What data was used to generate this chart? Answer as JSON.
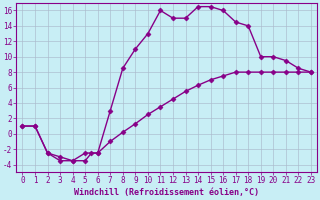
{
  "title": "",
  "xlabel": "Windchill (Refroidissement éolien,°C)",
  "ylabel": "",
  "bg_color": "#c8eef5",
  "line_color": "#880088",
  "grid_color": "#aabbcc",
  "xlim": [
    -0.5,
    23.5
  ],
  "ylim": [
    -5,
    17
  ],
  "xticks": [
    0,
    1,
    2,
    3,
    4,
    5,
    6,
    7,
    8,
    9,
    10,
    11,
    12,
    13,
    14,
    15,
    16,
    17,
    18,
    19,
    20,
    21,
    22,
    23
  ],
  "yticks": [
    -4,
    -2,
    0,
    2,
    4,
    6,
    8,
    10,
    12,
    14,
    16
  ],
  "line1_x": [
    0,
    1,
    2,
    3,
    4,
    5,
    5.5,
    6,
    7,
    8,
    9,
    10,
    11,
    12,
    13,
    14,
    15,
    16,
    17,
    18,
    19,
    20,
    21,
    22,
    23
  ],
  "line1_y": [
    1,
    1,
    -2.5,
    -3.0,
    -3.5,
    -3.5,
    -2.5,
    -2.5,
    3.0,
    8.5,
    11.0,
    13.0,
    16.0,
    15.0,
    15.0,
    16.5,
    16.5,
    16.0,
    14.5,
    14.0,
    10.0,
    10.0,
    9.5,
    8.5,
    8.0
  ],
  "line2_x": [
    0,
    1,
    2,
    3,
    4,
    5,
    6,
    7,
    8,
    9,
    10,
    11,
    12,
    13,
    14,
    15,
    16,
    17,
    18,
    19,
    20,
    21,
    22,
    23
  ],
  "line2_y": [
    1,
    1,
    -2.5,
    -3.5,
    -3.5,
    -2.5,
    -2.5,
    -1.0,
    0.2,
    1.3,
    2.5,
    3.5,
    4.5,
    5.5,
    6.3,
    7.0,
    7.5,
    8.0,
    8.0,
    8.0,
    8.0,
    8.0,
    8.0,
    8.0
  ],
  "marker": "D",
  "markersize": 2.5,
  "linewidth": 1.0,
  "xlabel_fontsize": 6.0,
  "tick_fontsize": 5.5
}
